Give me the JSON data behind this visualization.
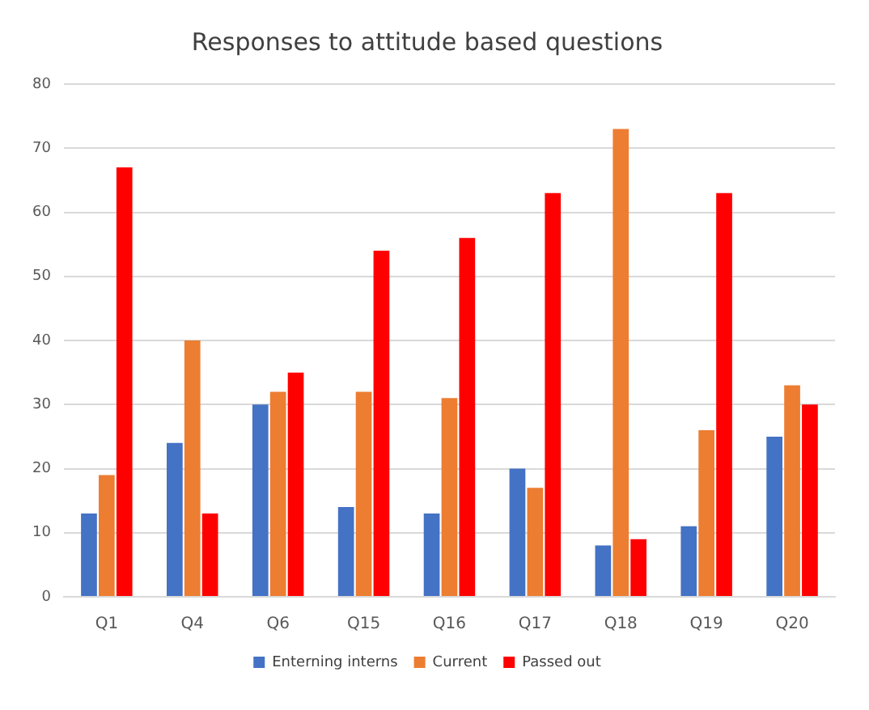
{
  "chart_data": {
    "type": "bar",
    "title": "Responses to attitude based questions",
    "categories": [
      "Q1",
      "Q4",
      "Q6",
      "Q15",
      "Q16",
      "Q17",
      "Q18",
      "Q19",
      "Q20"
    ],
    "series": [
      {
        "name": "Enterning interns",
        "color": "#4472c4",
        "values": [
          13,
          24,
          30,
          14,
          13,
          20,
          8,
          11,
          25
        ]
      },
      {
        "name": "Current",
        "color": "#ed7d31",
        "values": [
          19,
          40,
          32,
          32,
          31,
          17,
          73,
          26,
          33
        ]
      },
      {
        "name": "Passed out",
        "color": "#ff0000",
        "values": [
          67,
          13,
          35,
          54,
          56,
          63,
          9,
          63,
          30
        ]
      }
    ],
    "ylim": [
      0,
      80
    ],
    "yticks": [
      0,
      10,
      20,
      30,
      40,
      50,
      60,
      70,
      80
    ],
    "grid": "y",
    "legend": "bottom"
  }
}
